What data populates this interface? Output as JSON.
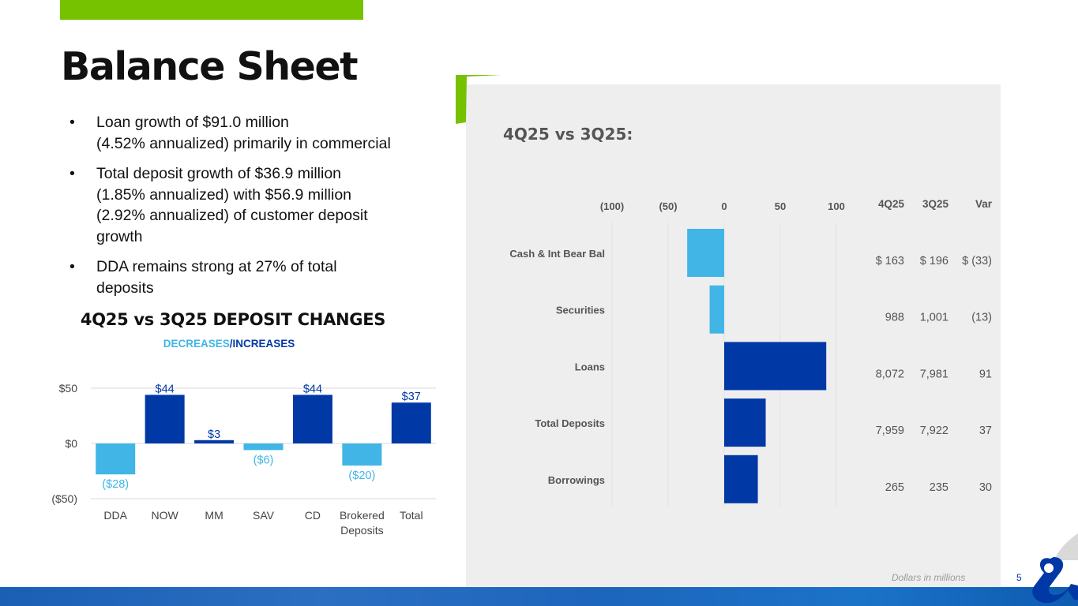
{
  "title": "Balance Sheet",
  "bullets": [
    {
      "line1": "Loan growth of $91.0 million",
      "line2": "(4.52% annualized) primarily in commercial"
    },
    {
      "line1": "Total deposit growth of $36.9 million",
      "line2": "(1.85% annualized) with $56.9 million",
      "line3": "(2.92% annualized) of customer deposit",
      "line4": "growth"
    },
    {
      "line1": "DDA remains strong at 27% of total",
      "line2": "deposits"
    }
  ],
  "deposit_chart": {
    "title": "4Q25 vs 3Q25 DEPOSIT CHANGES",
    "legend_decreases": "DECREASES",
    "legend_slash": "/",
    "legend_increases": "INCREASES"
  },
  "panel": {
    "title": "4Q25 vs 3Q25:",
    "footnote": "Dollars in millions",
    "page_number": "5"
  },
  "balance_table": {
    "headers": [
      "4Q25",
      "3Q25",
      "Var"
    ],
    "rows": [
      {
        "q4": "$ 163",
        "q3": "$ 196",
        "var": "$  (33)"
      },
      {
        "q4": "988",
        "q3": "1,001",
        "var": "(13)"
      },
      {
        "q4": "8,072",
        "q3": "7,981",
        "var": "91"
      },
      {
        "q4": "7,959",
        "q3": "7,922",
        "var": "37"
      },
      {
        "q4": "265",
        "q3": "235",
        "var": "30"
      }
    ]
  },
  "colors": {
    "decrease": "#41b6e6",
    "increase": "#0039a6",
    "brand_green": "#76c100"
  },
  "logo_icon": "ampersand-logo-icon",
  "chart_data": [
    {
      "type": "bar",
      "title": "4Q25 vs 3Q25 DEPOSIT CHANGES",
      "categories": [
        "DDA",
        "NOW",
        "MM",
        "SAV",
        "CD",
        "Brokered Deposits",
        "Total"
      ],
      "category_lines": [
        [
          "DDA"
        ],
        [
          "NOW"
        ],
        [
          "MM"
        ],
        [
          "SAV"
        ],
        [
          "CD"
        ],
        [
          "Brokered",
          "Deposits"
        ],
        [
          "Total"
        ]
      ],
      "values": [
        -28,
        44,
        3,
        -6,
        44,
        -20,
        37
      ],
      "data_labels": [
        "($28)",
        "$44",
        "$3",
        "($6)",
        "$44",
        "($20)",
        "$37"
      ],
      "yticks": [
        50,
        0,
        -50
      ],
      "ytick_labels": [
        "$50",
        "$0",
        "($50)"
      ],
      "ylim": [
        -50,
        50
      ],
      "grid": true,
      "xlabel": "",
      "ylabel": ""
    },
    {
      "type": "bar",
      "orientation": "horizontal",
      "title": "4Q25 vs 3Q25:",
      "categories": [
        "Cash & Int Bear Bal",
        "Securities",
        "Loans",
        "Total Deposits",
        "Borrowings"
      ],
      "values": [
        -33,
        -13,
        91,
        37,
        30
      ],
      "xticks": [
        -100,
        -50,
        0,
        50,
        100
      ],
      "xtick_labels": [
        "(100)",
        "(50)",
        "0",
        "50",
        "100"
      ],
      "xlim": [
        -100,
        100
      ],
      "grid": true
    }
  ]
}
